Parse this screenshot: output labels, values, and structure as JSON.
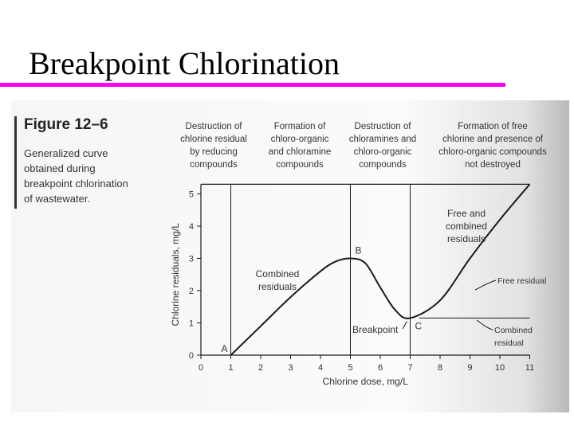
{
  "title": "Breakpoint Chlorination",
  "figure": {
    "label": "Figure 12–6",
    "caption": [
      "Generalized curve",
      "obtained during",
      "breakpoint chlorination",
      "of wastewater."
    ]
  },
  "colors": {
    "title_rule": "#ff00ff",
    "curve": "#1a1a1a",
    "text": "#333333"
  },
  "chart_data": {
    "type": "line",
    "xlabel": "Chlorine dose, mg/L",
    "ylabel": "Chlorine residuals, mg/L",
    "xlim": [
      0,
      11
    ],
    "ylim": [
      0,
      5
    ],
    "x_ticks": [
      0,
      1,
      2,
      3,
      4,
      5,
      6,
      7,
      8,
      9,
      10,
      11
    ],
    "y_ticks": [
      0,
      1,
      2,
      3,
      4,
      5
    ],
    "grid": false,
    "series": [
      {
        "x": [
          1,
          2,
          3,
          4,
          4.5,
          5,
          5.5,
          6,
          6.5,
          7,
          8,
          9,
          10,
          11
        ],
        "y": [
          0,
          0.9,
          1.8,
          2.6,
          2.9,
          3.0,
          2.85,
          2.1,
          1.4,
          1.15,
          1.7,
          3.0,
          4.2,
          5.3
        ]
      }
    ],
    "reference_lines": {
      "top_x": [
        0,
        11
      ],
      "top_y": 5.3,
      "vertical_x": [
        1,
        5,
        7
      ]
    },
    "residual_lines": {
      "free_x": [
        7.3,
        11
      ],
      "combined_y": 1.15
    },
    "points": [
      {
        "label": "A",
        "x": 1,
        "y": 0
      },
      {
        "label": "B",
        "x": 5,
        "y": 3.0
      },
      {
        "label": "C",
        "x": 7,
        "y": 1.15
      }
    ],
    "zones": [
      {
        "lines": [
          "Destruction of",
          "chlorine residual",
          "by reducing",
          "compounds"
        ]
      },
      {
        "lines": [
          "Formation of",
          "chloro-organic",
          "and chloramine",
          "compounds"
        ]
      },
      {
        "lines": [
          "Destruction of",
          "chloramines and",
          "chloro-organic",
          "compounds"
        ]
      },
      {
        "lines": [
          "Formation of free",
          "chlorine and presence of",
          "chloro-organic compounds",
          "not destroyed"
        ]
      }
    ],
    "annotations": {
      "combined_residuals": [
        "Combined",
        "residuals"
      ],
      "free_and_combined": [
        "Free and",
        "combined",
        "residuals"
      ],
      "free_residual": "Free residual",
      "breakpoint": "Breakpoint",
      "combined_residual": [
        "Combined",
        "residual"
      ]
    }
  }
}
